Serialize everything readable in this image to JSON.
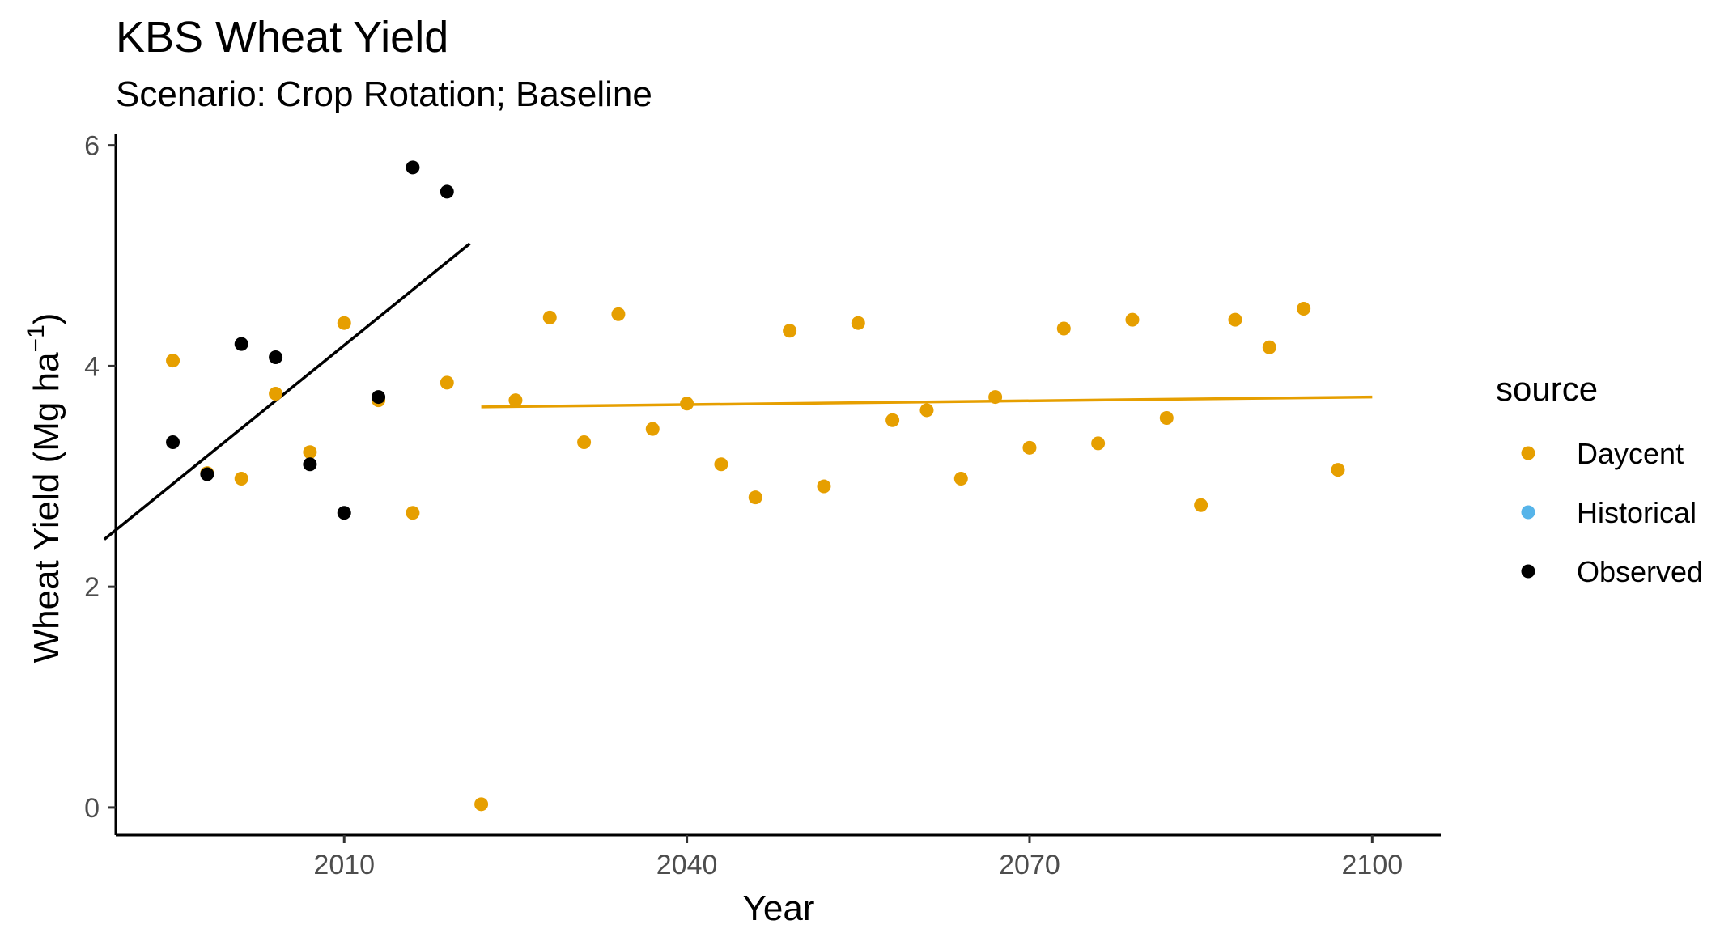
{
  "chart_data": {
    "type": "scatter",
    "title": "KBS Wheat Yield",
    "subtitle": "Scenario: Crop Rotation; Baseline",
    "xlabel": "Year",
    "ylabel_main": "Wheat Yield (Mg ha",
    "ylabel_sup": "−1",
    "ylabel_close": ")",
    "xlim": [
      1990,
      2106
    ],
    "ylim": [
      -0.25,
      6.1
    ],
    "xticks": [
      2010,
      2040,
      2070,
      2100
    ],
    "yticks": [
      0,
      2,
      4,
      6
    ],
    "grid": false,
    "legend": {
      "title": "source",
      "position": "right"
    },
    "series": [
      {
        "name": "Daycent",
        "color": "#E69F00",
        "points": [
          [
            1995,
            4.05
          ],
          [
            1998,
            3.03
          ],
          [
            2001,
            2.98
          ],
          [
            2004,
            3.75
          ],
          [
            2007,
            3.22
          ],
          [
            2010,
            4.39
          ],
          [
            2013,
            3.69
          ],
          [
            2016,
            2.67
          ],
          [
            2019,
            3.85
          ],
          [
            2022,
            0.03
          ],
          [
            2025,
            3.69
          ],
          [
            2028,
            4.44
          ],
          [
            2031,
            3.31
          ],
          [
            2034,
            4.47
          ],
          [
            2037,
            3.43
          ],
          [
            2040,
            3.66
          ],
          [
            2043,
            3.11
          ],
          [
            2046,
            2.81
          ],
          [
            2049,
            4.32
          ],
          [
            2052,
            2.91
          ],
          [
            2055,
            4.39
          ],
          [
            2058,
            3.51
          ],
          [
            2061,
            3.6
          ],
          [
            2064,
            2.98
          ],
          [
            2067,
            3.72
          ],
          [
            2070,
            3.26
          ],
          [
            2073,
            4.34
          ],
          [
            2076,
            3.3
          ],
          [
            2079,
            4.42
          ],
          [
            2082,
            3.53
          ],
          [
            2085,
            2.74
          ],
          [
            2088,
            4.42
          ],
          [
            2091,
            4.17
          ],
          [
            2094,
            4.52
          ],
          [
            2097,
            3.06
          ]
        ],
        "trend": [
          [
            2022,
            3.63
          ],
          [
            2100,
            3.72
          ]
        ]
      },
      {
        "name": "Historical",
        "color": "#56B4E9",
        "points": []
      },
      {
        "name": "Observed",
        "color": "#000000",
        "points": [
          [
            1995,
            3.31
          ],
          [
            1998,
            3.02
          ],
          [
            2001,
            4.2
          ],
          [
            2004,
            4.08
          ],
          [
            2007,
            3.11
          ],
          [
            2010,
            2.67
          ],
          [
            2013,
            3.72
          ],
          [
            2016,
            5.8
          ],
          [
            2019,
            5.58
          ]
        ],
        "trend": [
          [
            1989,
            2.43
          ],
          [
            2021,
            5.11
          ]
        ]
      }
    ]
  }
}
